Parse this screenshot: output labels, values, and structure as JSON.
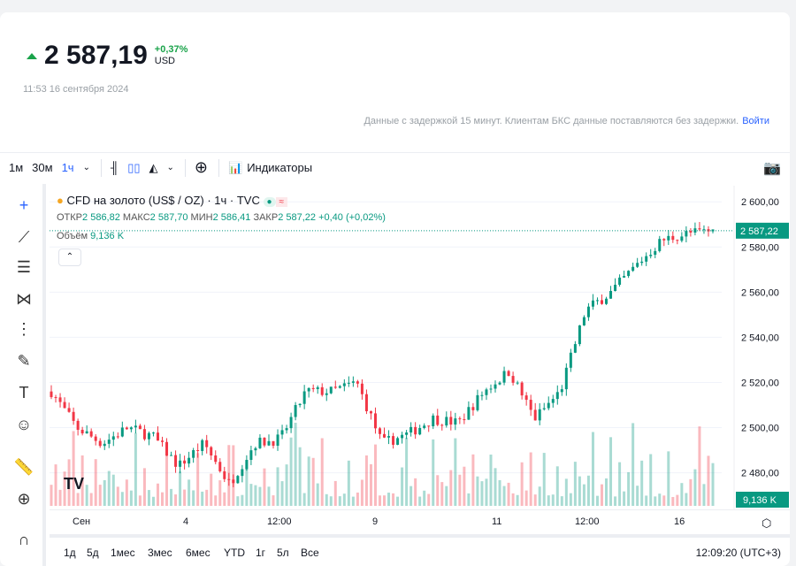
{
  "quote": {
    "price": "2 587,19",
    "change": "+0,37%",
    "currency": "USD",
    "timestamp": "11:53 16 сентября 2024",
    "delay_note": "Данные с задержкой 15 минут. Клиентам БКС данные поставляются без задержки.",
    "login": "Войти"
  },
  "toolbar": {
    "intervals": [
      "1м",
      "30м",
      "1ч"
    ],
    "active_interval": "1ч",
    "indicators": "Индикаторы"
  },
  "legend": {
    "title": "CFD на золото (US$ / OZ) · 1ч · TVC",
    "open_label": "ОТКР",
    "open": "2 586,82",
    "high_label": "МАКС",
    "high": "2 587,70",
    "low_label": "МИН",
    "low": "2 586,41",
    "close_label": "ЗАКР",
    "close": "2 587,22",
    "change": "+0,40 (+0,02%)",
    "volume_label": "Объём",
    "volume": "9,136 K"
  },
  "colors": {
    "up": "#089981",
    "down": "#f23645",
    "accent": "#2962ff"
  },
  "chart_data": {
    "type": "candlestick",
    "y_ticks": [
      "2 600,00",
      "2 580,00",
      "2 560,00",
      "2 540,00",
      "2 520,00",
      "2 500,00",
      "2 480,00"
    ],
    "ylim": [
      2472,
      2604
    ],
    "x_ticks": [
      "Сен",
      "4",
      "12:00",
      "9",
      "11",
      "12:00",
      "16"
    ],
    "approx_path": [
      2516,
      2500,
      2493,
      2500,
      2496,
      2483,
      2493,
      2475,
      2493,
      2495,
      2516,
      2516,
      2520,
      2493,
      2497,
      2504,
      2502,
      2516,
      2525,
      2504,
      2516,
      2552,
      2560,
      2572,
      2583,
      2586,
      2587.22
    ],
    "last_price": "2 587,22",
    "last_volume": "9,136 K"
  },
  "range": {
    "buttons": [
      "1д",
      "5д",
      "1мес",
      "3мес",
      "6мес",
      "YTD",
      "1г",
      "5л",
      "Все"
    ],
    "clock": "12:09:20 (UTC+3)"
  }
}
